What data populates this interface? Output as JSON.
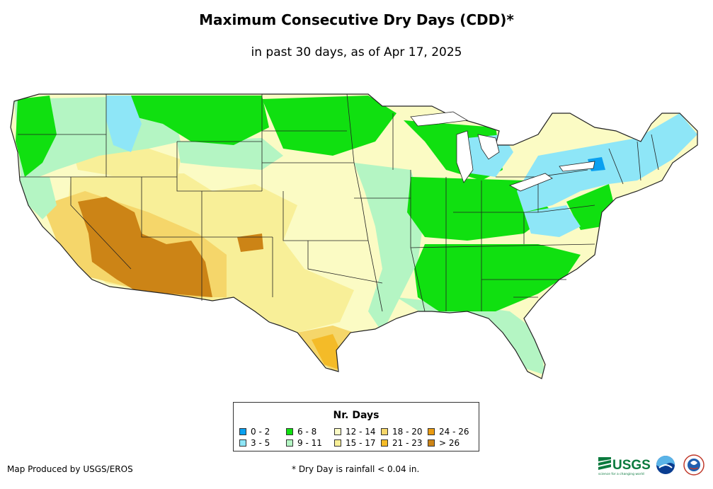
{
  "header": {
    "title": "Maximum Consecutive Dry Days (CDD)*",
    "subtitle": "in past 30 days, as of Apr 17, 2025"
  },
  "legend": {
    "title": "Nr. Days",
    "items": [
      {
        "label": "0 - 2",
        "color": "#0aa0f0"
      },
      {
        "label": "3 - 5",
        "color": "#8ee6f7"
      },
      {
        "label": "6 - 8",
        "color": "#10e010"
      },
      {
        "label": "9 - 11",
        "color": "#b4f5c3"
      },
      {
        "label": "12 - 14",
        "color": "#fbfbc4"
      },
      {
        "label": "15 - 17",
        "color": "#f8ef98"
      },
      {
        "label": "18 - 20",
        "color": "#f5d66a"
      },
      {
        "label": "21 - 23",
        "color": "#f4bb28"
      },
      {
        "label": "24 - 26",
        "color": "#e99b12"
      },
      {
        "label": "> 26",
        "color": "#cc8416"
      }
    ]
  },
  "footer": {
    "credit": "Map Produced by USGS/EROS",
    "footnote": "* Dry Day is rainfall < 0.04 in."
  },
  "logos": {
    "usgs": "USGS",
    "usgs_tagline": "science for a changing world"
  }
}
